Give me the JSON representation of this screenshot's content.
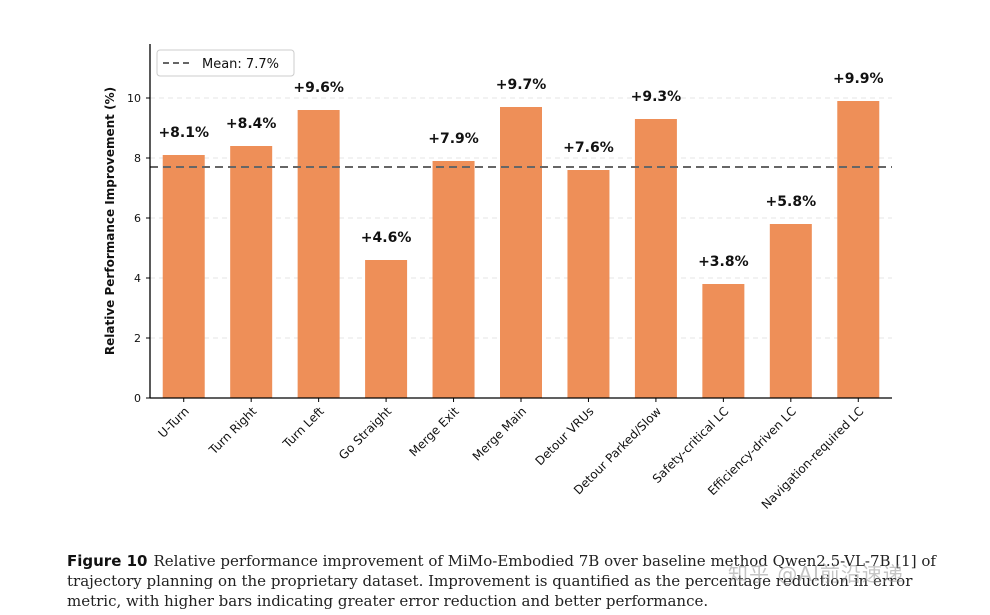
{
  "chart_data": {
    "type": "bar",
    "categories": [
      "U-Turn",
      "Turn Right",
      "Turn Left",
      "Go Straight",
      "Merge Exit",
      "Merge Main",
      "Detour VRUs",
      "Detour Parked/Slow",
      "Safety-critical LC",
      "Efficiency-driven LC",
      "Navigation-required LC"
    ],
    "values": [
      8.1,
      8.4,
      9.6,
      4.6,
      7.9,
      9.7,
      7.6,
      9.3,
      3.8,
      5.8,
      9.9
    ],
    "value_labels": [
      "+8.1%",
      "+8.4%",
      "+9.6%",
      "+4.6%",
      "+7.9%",
      "+9.7%",
      "+7.6%",
      "+9.3%",
      "+3.8%",
      "+5.8%",
      "+9.9%"
    ],
    "ylabel": "Relative Performance Improvement (%)",
    "xlabel": "",
    "ylim": [
      0,
      11.8
    ],
    "yticks": [
      "0",
      "2",
      "4",
      "6",
      "8",
      "10"
    ],
    "mean": 7.7,
    "mean_label": "Mean: 7.7%",
    "legend_position": "top-left",
    "grid": "horizontal dashed",
    "colors": {
      "bar": "#ee8f58",
      "mean_line": "#666666",
      "axis": "#000000",
      "grid": "#e4e4e4"
    }
  },
  "caption": {
    "label": "Figure 10",
    "text": "Relative performance improvement of MiMo-Embodied 7B over baseline method Qwen2.5-VL-7B [1] of trajectory planning on the proprietary dataset. Improvement is quantified as the percentage reduction in error metric, with higher bars indicating greater error reduction and better performance."
  },
  "watermark": "知乎 @AI前沿速递"
}
